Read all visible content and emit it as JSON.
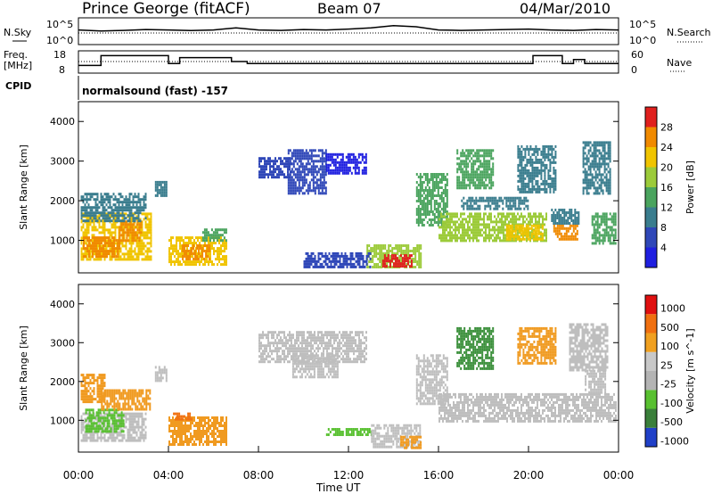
{
  "header": {
    "station": "Prince George (fitACF)",
    "beam": "Beam 07",
    "date": "04/Mar/2010"
  },
  "aux_panels": {
    "noise": {
      "left_label": "N.Sky",
      "right_label": "N.Search",
      "ticks": [
        "10^5",
        "10^0"
      ]
    },
    "freq": {
      "left_label_1": "Freq.",
      "left_label_2": "[MHz]",
      "left_ticks": [
        "18",
        "8"
      ],
      "right_label": "Nave",
      "right_ticks": [
        "60",
        "0"
      ]
    },
    "cpid": {
      "label": "CPID",
      "text": "normalsound (fast) -157"
    }
  },
  "x_axis": {
    "label": "Time UT",
    "tick_labels": [
      "00:00",
      "04:00",
      "08:00",
      "12:00",
      "16:00",
      "20:00",
      "00:00"
    ]
  },
  "chart_data": [
    {
      "type": "heatmap",
      "title": "",
      "xlabel": "Time UT",
      "ylabel": "Slant Range [km]",
      "xlim": [
        0,
        24
      ],
      "ylim": [
        180,
        4500
      ],
      "yticks": [
        "1000",
        "2000",
        "3000",
        "4000"
      ],
      "colorbar": {
        "label": "Power [dB]",
        "min": 0,
        "max": 32,
        "tick_labels": [
          "4",
          "8",
          "12",
          "16",
          "20",
          "24",
          "28"
        ]
      },
      "colors": [
        "#1f1fe0",
        "#2f47b8",
        "#3a7d8e",
        "#4aa45e",
        "#9ccb3a",
        "#f0c400",
        "#f08a00",
        "#e0201e"
      ],
      "regions": [
        {
          "t": [
            0.1,
            3.2
          ],
          "r": [
            500,
            1700
          ],
          "v": 20
        },
        {
          "t": [
            0.2,
            1.8
          ],
          "r": [
            600,
            1100
          ],
          "v": 27
        },
        {
          "t": [
            1.8,
            2.8
          ],
          "r": [
            1000,
            1500
          ],
          "v": 24
        },
        {
          "t": [
            0.1,
            3.0
          ],
          "r": [
            1500,
            2200
          ],
          "v": 10
        },
        {
          "t": [
            3.4,
            3.9
          ],
          "r": [
            2100,
            2500
          ],
          "v": 9
        },
        {
          "t": [
            4.0,
            6.6
          ],
          "r": [
            400,
            1100
          ],
          "v": 20
        },
        {
          "t": [
            4.6,
            5.8
          ],
          "r": [
            500,
            900
          ],
          "v": 27
        },
        {
          "t": [
            5.5,
            6.6
          ],
          "r": [
            1000,
            1300
          ],
          "v": 12
        },
        {
          "t": [
            8.0,
            9.5
          ],
          "r": [
            2600,
            3100
          ],
          "v": 6
        },
        {
          "t": [
            9.3,
            11.0
          ],
          "r": [
            2200,
            3300
          ],
          "v": 7
        },
        {
          "t": [
            11.0,
            12.8
          ],
          "r": [
            2700,
            3200
          ],
          "v": 3
        },
        {
          "t": [
            12.8,
            15.2
          ],
          "r": [
            350,
            900
          ],
          "v": 18
        },
        {
          "t": [
            13.5,
            14.8
          ],
          "r": [
            350,
            650
          ],
          "v": 28
        },
        {
          "t": [
            10.0,
            13.0
          ],
          "r": [
            300,
            700
          ],
          "v": 4
        },
        {
          "t": [
            15.0,
            16.4
          ],
          "r": [
            1400,
            2700
          ],
          "v": 12
        },
        {
          "t": [
            16.0,
            20.8
          ],
          "r": [
            1000,
            1700
          ],
          "v": 16
        },
        {
          "t": [
            19.0,
            20.6
          ],
          "r": [
            1000,
            1400
          ],
          "v": 22
        },
        {
          "t": [
            17.0,
            20.0
          ],
          "r": [
            1800,
            2100
          ],
          "v": 10
        },
        {
          "t": [
            16.8,
            18.4
          ],
          "r": [
            2300,
            3300
          ],
          "v": 14
        },
        {
          "t": [
            19.5,
            21.2
          ],
          "r": [
            2200,
            3400
          ],
          "v": 11
        },
        {
          "t": [
            21.1,
            22.2
          ],
          "r": [
            1000,
            1400
          ],
          "v": 25
        },
        {
          "t": [
            21.0,
            22.2
          ],
          "r": [
            1400,
            1800
          ],
          "v": 8
        },
        {
          "t": [
            22.8,
            23.9
          ],
          "r": [
            900,
            1700
          ],
          "v": 13
        },
        {
          "t": [
            22.4,
            23.6
          ],
          "r": [
            2200,
            3500
          ],
          "v": 9
        }
      ]
    },
    {
      "type": "heatmap",
      "title": "",
      "xlabel": "Time UT",
      "ylabel": "Slant Range [km]",
      "xlim": [
        0,
        24
      ],
      "ylim": [
        180,
        4500
      ],
      "yticks": [
        "1000",
        "2000",
        "3000",
        "4000"
      ],
      "colorbar": {
        "label": "Velocity [m s^-1]",
        "tick_labels": [
          "1000",
          "500",
          "100",
          "25",
          "-25",
          "-100",
          "-500",
          "-1000"
        ]
      },
      "colors": [
        "#2040c8",
        "#3a7f3a",
        "#58c030",
        "#b4b4b4",
        "#c8c8c8",
        "#f0a020",
        "#f07010",
        "#e01010"
      ],
      "regions": [
        {
          "t": [
            0.1,
            3.0
          ],
          "r": [
            500,
            1200
          ],
          "v": "grey"
        },
        {
          "t": [
            0.3,
            2.0
          ],
          "r": [
            700,
            1300
          ],
          "v": "green"
        },
        {
          "t": [
            1.0,
            3.2
          ],
          "r": [
            1300,
            1800
          ],
          "v": "orange"
        },
        {
          "t": [
            0.1,
            1.2
          ],
          "r": [
            1500,
            2200
          ],
          "v": "orange"
        },
        {
          "t": [
            3.4,
            3.9
          ],
          "r": [
            2000,
            2400
          ],
          "v": "grey"
        },
        {
          "t": [
            4.0,
            6.6
          ],
          "r": [
            400,
            1100
          ],
          "v": "orange"
        },
        {
          "t": [
            4.2,
            5.0
          ],
          "r": [
            1000,
            1200
          ],
          "v": "orange2"
        },
        {
          "t": [
            8.0,
            12.8
          ],
          "r": [
            2500,
            3300
          ],
          "v": "grey"
        },
        {
          "t": [
            9.5,
            11.5
          ],
          "r": [
            2100,
            2700
          ],
          "v": "grey"
        },
        {
          "t": [
            11.0,
            13.0
          ],
          "r": [
            600,
            800
          ],
          "v": "green"
        },
        {
          "t": [
            13.0,
            15.2
          ],
          "r": [
            300,
            900
          ],
          "v": "grey"
        },
        {
          "t": [
            14.3,
            15.2
          ],
          "r": [
            300,
            600
          ],
          "v": "orange"
        },
        {
          "t": [
            15.0,
            16.4
          ],
          "r": [
            1400,
            2700
          ],
          "v": "grey"
        },
        {
          "t": [
            16.0,
            23.9
          ],
          "r": [
            1000,
            1700
          ],
          "v": "grey"
        },
        {
          "t": [
            16.8,
            18.4
          ],
          "r": [
            2300,
            3400
          ],
          "v": "dgreen"
        },
        {
          "t": [
            19.5,
            21.2
          ],
          "r": [
            2500,
            3400
          ],
          "v": "orange"
        },
        {
          "t": [
            21.8,
            23.5
          ],
          "r": [
            2300,
            3500
          ],
          "v": "grey"
        },
        {
          "t": [
            22.5,
            23.4
          ],
          "r": [
            1700,
            2300
          ],
          "v": "grey"
        }
      ]
    },
    {
      "type": "line",
      "name_left": "N.Sky",
      "values": [
        0.6,
        0.55,
        0.58,
        0.62,
        0.6,
        0.57,
        0.6,
        0.7,
        0.6,
        0.58,
        0.62,
        0.6,
        0.64,
        0.7,
        0.8,
        0.75,
        0.6,
        0.58,
        0.6,
        0.62,
        0.64,
        0.6,
        0.58,
        0.62,
        0.6
      ]
    },
    {
      "type": "line",
      "name_right": "Nave",
      "freq_steps": [
        {
          "t": [
            0.0,
            1.0
          ],
          "v": 11
        },
        {
          "t": [
            1.0,
            4.0
          ],
          "v": 16
        },
        {
          "t": [
            4.0,
            4.5
          ],
          "v": 12
        },
        {
          "t": [
            4.5,
            6.8
          ],
          "v": 15
        },
        {
          "t": [
            6.8,
            7.5
          ],
          "v": 13
        },
        {
          "t": [
            7.5,
            20.2
          ],
          "v": 12
        },
        {
          "t": [
            20.2,
            21.5
          ],
          "v": 16
        },
        {
          "t": [
            21.5,
            22.0
          ],
          "v": 12
        },
        {
          "t": [
            22.0,
            22.5
          ],
          "v": 14
        },
        {
          "t": [
            22.5,
            24.0
          ],
          "v": 12
        }
      ]
    }
  ]
}
